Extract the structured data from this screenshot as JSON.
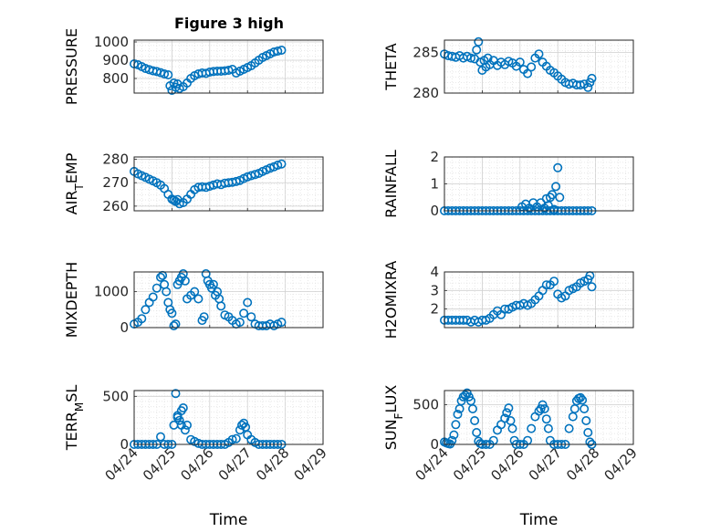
{
  "figure": {
    "title": "Figure 3 high",
    "xlabel": "Time",
    "x_ticks": [
      "04/24",
      "04/25",
      "04/26",
      "04/27",
      "04/28",
      "04/29"
    ]
  },
  "chart_data": [
    {
      "type": "scatter",
      "ylabel": "PRESSURE",
      "ylim": [
        720,
        1010
      ],
      "yticks": [
        800,
        900,
        1000
      ],
      "grid": true,
      "x": [
        0.0,
        0.1,
        0.2,
        0.3,
        0.4,
        0.5,
        0.6,
        0.7,
        0.8,
        0.9,
        0.95,
        1.0,
        1.05,
        1.1,
        1.15,
        1.2,
        1.3,
        1.4,
        1.5,
        1.6,
        1.7,
        1.8,
        1.9,
        2.0,
        2.1,
        2.2,
        2.3,
        2.4,
        2.5,
        2.6,
        2.7,
        2.8,
        2.9,
        3.0,
        3.1,
        3.2,
        3.3,
        3.4,
        3.5,
        3.6,
        3.7,
        3.8,
        3.9
      ],
      "values": [
        880,
        875,
        865,
        855,
        848,
        842,
        838,
        832,
        825,
        820,
        760,
        735,
        775,
        752,
        770,
        745,
        755,
        775,
        800,
        815,
        825,
        830,
        828,
        835,
        838,
        840,
        840,
        842,
        845,
        850,
        830,
        840,
        850,
        860,
        870,
        885,
        900,
        915,
        925,
        935,
        945,
        950,
        955
      ]
    },
    {
      "type": "scatter",
      "ylabel": "THETA",
      "ylim": [
        280,
        286.5
      ],
      "yticks": [
        280,
        285
      ],
      "grid": true,
      "x": [
        0.0,
        0.1,
        0.2,
        0.3,
        0.4,
        0.5,
        0.6,
        0.7,
        0.8,
        0.85,
        0.9,
        0.95,
        1.0,
        1.05,
        1.1,
        1.15,
        1.2,
        1.3,
        1.4,
        1.5,
        1.6,
        1.7,
        1.8,
        1.9,
        2.0,
        2.1,
        2.2,
        2.3,
        2.4,
        2.5,
        2.6,
        2.7,
        2.8,
        2.9,
        3.0,
        3.1,
        3.2,
        3.3,
        3.4,
        3.5,
        3.6,
        3.7,
        3.8,
        3.85,
        3.9
      ],
      "values": [
        284.8,
        284.6,
        284.5,
        284.4,
        284.6,
        284.3,
        284.5,
        284.3,
        284.2,
        285.3,
        286.3,
        283.8,
        282.8,
        284.0,
        283.2,
        284.3,
        283.5,
        284.0,
        283.4,
        283.8,
        283.5,
        283.9,
        283.7,
        283.3,
        283.8,
        282.9,
        282.4,
        283.2,
        284.3,
        284.8,
        283.8,
        283.3,
        282.8,
        282.5,
        282.1,
        281.7,
        281.3,
        281.1,
        281.2,
        281.0,
        281.0,
        281.1,
        280.7,
        281.3,
        281.8
      ]
    },
    {
      "type": "scatter",
      "ylabel": "AIR_TEMP",
      "ylim": [
        258,
        281
      ],
      "yticks": [
        260,
        270,
        280
      ],
      "grid": true,
      "x": [
        0.0,
        0.1,
        0.2,
        0.3,
        0.4,
        0.5,
        0.6,
        0.7,
        0.8,
        0.9,
        1.0,
        1.05,
        1.1,
        1.15,
        1.2,
        1.3,
        1.4,
        1.5,
        1.6,
        1.7,
        1.8,
        1.9,
        2.0,
        2.1,
        2.2,
        2.3,
        2.4,
        2.5,
        2.6,
        2.7,
        2.8,
        2.9,
        3.0,
        3.1,
        3.2,
        3.3,
        3.4,
        3.5,
        3.6,
        3.7,
        3.8,
        3.9
      ],
      "values": [
        274.8,
        273.8,
        273.0,
        272.3,
        271.5,
        270.8,
        270.0,
        269.0,
        267.5,
        265.0,
        263.0,
        262.5,
        262.0,
        262.8,
        261.0,
        261.5,
        263.0,
        265.0,
        267.0,
        268.0,
        268.2,
        268.0,
        268.5,
        269.0,
        269.5,
        269.2,
        269.8,
        270.0,
        270.2,
        270.5,
        271.0,
        271.8,
        272.5,
        273.0,
        273.5,
        274.0,
        274.8,
        275.5,
        276.2,
        276.8,
        277.5,
        278.0
      ]
    },
    {
      "type": "scatter",
      "ylabel": "RAINFALL",
      "ylim": [
        0,
        2
      ],
      "yticks": [
        0,
        1,
        2
      ],
      "grid": true,
      "x": [
        0.0,
        0.1,
        0.2,
        0.3,
        0.4,
        0.5,
        0.6,
        0.7,
        0.8,
        0.9,
        1.0,
        1.1,
        1.2,
        1.3,
        1.4,
        1.5,
        1.6,
        1.7,
        1.8,
        1.9,
        2.0,
        2.1,
        2.2,
        2.3,
        2.4,
        2.5,
        2.6,
        2.7,
        2.8,
        2.9,
        3.0,
        3.1,
        3.2,
        3.3,
        3.4,
        3.5,
        3.6,
        3.7,
        3.8,
        3.9,
        2.05,
        2.15,
        2.25,
        2.35,
        2.45,
        2.55,
        2.65,
        2.7,
        2.75,
        2.8,
        2.85,
        2.9,
        2.95,
        3.0,
        3.05
      ],
      "values": [
        0,
        0,
        0,
        0,
        0,
        0,
        0,
        0,
        0,
        0,
        0,
        0,
        0,
        0,
        0,
        0,
        0,
        0,
        0,
        0,
        0,
        0,
        0,
        0,
        0,
        0,
        0,
        0,
        0,
        0,
        0,
        0,
        0,
        0,
        0,
        0,
        0,
        0,
        0,
        0,
        0.15,
        0.25,
        0.1,
        0.3,
        0.15,
        0.3,
        0.1,
        0.45,
        0.2,
        0.5,
        0.6,
        0.05,
        0.9,
        1.6,
        0.5
      ]
    },
    {
      "type": "scatter",
      "ylabel": "MIXDEPTH",
      "ylim": [
        0,
        1550
      ],
      "yticks": [
        0,
        1000
      ],
      "grid": true,
      "x": [
        0.0,
        0.1,
        0.2,
        0.3,
        0.4,
        0.5,
        0.6,
        0.7,
        0.75,
        0.8,
        0.85,
        0.9,
        0.95,
        1.0,
        1.05,
        1.1,
        1.15,
        1.2,
        1.25,
        1.3,
        1.35,
        1.4,
        1.5,
        1.6,
        1.7,
        1.8,
        1.85,
        1.9,
        1.95,
        2.0,
        2.05,
        2.1,
        2.15,
        2.2,
        2.25,
        2.3,
        2.4,
        2.5,
        2.6,
        2.7,
        2.8,
        2.9,
        3.0,
        3.1,
        3.2,
        3.3,
        3.4,
        3.5,
        3.6,
        3.7,
        3.8,
        3.9
      ],
      "values": [
        100,
        150,
        250,
        500,
        700,
        850,
        1100,
        1400,
        1450,
        1200,
        1000,
        700,
        500,
        400,
        50,
        100,
        1200,
        1300,
        1400,
        1500,
        1300,
        800,
        900,
        1000,
        800,
        200,
        300,
        1500,
        1300,
        1200,
        1100,
        1200,
        900,
        1000,
        800,
        600,
        350,
        300,
        200,
        100,
        150,
        400,
        700,
        300,
        100,
        50,
        50,
        50,
        100,
        50,
        100,
        150
      ]
    },
    {
      "type": "scatter",
      "ylabel": "H2OMIXRA",
      "ylim": [
        1,
        4
      ],
      "yticks": [
        2,
        3,
        4
      ],
      "grid": true,
      "x": [
        0.0,
        0.1,
        0.2,
        0.3,
        0.4,
        0.5,
        0.6,
        0.7,
        0.8,
        0.9,
        1.0,
        1.1,
        1.2,
        1.3,
        1.4,
        1.5,
        1.6,
        1.7,
        1.8,
        1.9,
        2.0,
        2.1,
        2.2,
        2.3,
        2.4,
        2.5,
        2.6,
        2.7,
        2.8,
        2.9,
        3.0,
        3.1,
        3.2,
        3.3,
        3.4,
        3.5,
        3.6,
        3.7,
        3.8,
        3.85,
        3.9
      ],
      "values": [
        1.4,
        1.4,
        1.4,
        1.4,
        1.4,
        1.4,
        1.4,
        1.3,
        1.4,
        1.3,
        1.4,
        1.4,
        1.5,
        1.7,
        1.9,
        1.7,
        2.0,
        2.0,
        2.1,
        2.2,
        2.2,
        2.3,
        2.2,
        2.3,
        2.5,
        2.7,
        3.0,
        3.3,
        3.3,
        3.5,
        2.8,
        2.6,
        2.7,
        3.0,
        3.1,
        3.2,
        3.4,
        3.5,
        3.6,
        3.8,
        3.2
      ]
    },
    {
      "type": "scatter",
      "ylabel": "TERR_MSL",
      "ylim": [
        0,
        560
      ],
      "yticks": [
        0,
        500
      ],
      "grid": true,
      "x": [
        0.0,
        0.1,
        0.2,
        0.3,
        0.4,
        0.5,
        0.6,
        0.7,
        0.8,
        0.9,
        1.0,
        1.05,
        1.1,
        1.15,
        1.2,
        1.25,
        1.3,
        1.35,
        1.4,
        1.5,
        1.6,
        1.7,
        1.8,
        1.9,
        2.0,
        2.1,
        2.2,
        2.3,
        2.4,
        2.5,
        2.6,
        2.7,
        2.8,
        2.85,
        2.9,
        2.95,
        3.0,
        3.1,
        3.2,
        3.3,
        3.4,
        3.5,
        3.6,
        3.7,
        3.8,
        3.9,
        1.15,
        1.25
      ],
      "values": [
        0,
        0,
        0,
        0,
        0,
        0,
        0,
        80,
        0,
        0,
        0,
        200,
        530,
        300,
        250,
        350,
        380,
        150,
        200,
        50,
        30,
        10,
        0,
        0,
        0,
        0,
        0,
        0,
        0,
        20,
        50,
        60,
        150,
        200,
        220,
        180,
        100,
        50,
        20,
        0,
        0,
        0,
        0,
        0,
        0,
        0,
        280,
        200
      ]
    },
    {
      "type": "scatter",
      "ylabel": "SUN_FLUX",
      "ylim": [
        0,
        680
      ],
      "yticks": [
        0,
        500
      ],
      "grid": true,
      "x": [
        0.0,
        0.05,
        0.1,
        0.15,
        0.2,
        0.25,
        0.3,
        0.35,
        0.4,
        0.45,
        0.5,
        0.55,
        0.6,
        0.65,
        0.7,
        0.75,
        0.8,
        0.85,
        0.9,
        0.95,
        1.0,
        1.1,
        1.2,
        1.3,
        1.4,
        1.5,
        1.6,
        1.65,
        1.7,
        1.75,
        1.8,
        1.85,
        1.9,
        2.0,
        2.1,
        2.2,
        2.3,
        2.4,
        2.5,
        2.55,
        2.6,
        2.65,
        2.7,
        2.75,
        2.8,
        2.9,
        3.0,
        3.1,
        3.2,
        3.3,
        3.4,
        3.45,
        3.5,
        3.55,
        3.6,
        3.65,
        3.7,
        3.75,
        3.8,
        3.85,
        3.9
      ],
      "values": [
        30,
        20,
        10,
        5,
        50,
        120,
        250,
        380,
        450,
        550,
        600,
        620,
        650,
        600,
        550,
        450,
        300,
        150,
        40,
        10,
        0,
        0,
        0,
        50,
        180,
        250,
        330,
        400,
        460,
        300,
        200,
        50,
        0,
        0,
        0,
        50,
        200,
        350,
        420,
        450,
        500,
        450,
        320,
        200,
        50,
        0,
        0,
        0,
        0,
        200,
        350,
        450,
        550,
        580,
        590,
        560,
        450,
        300,
        150,
        30,
        0
      ]
    }
  ]
}
